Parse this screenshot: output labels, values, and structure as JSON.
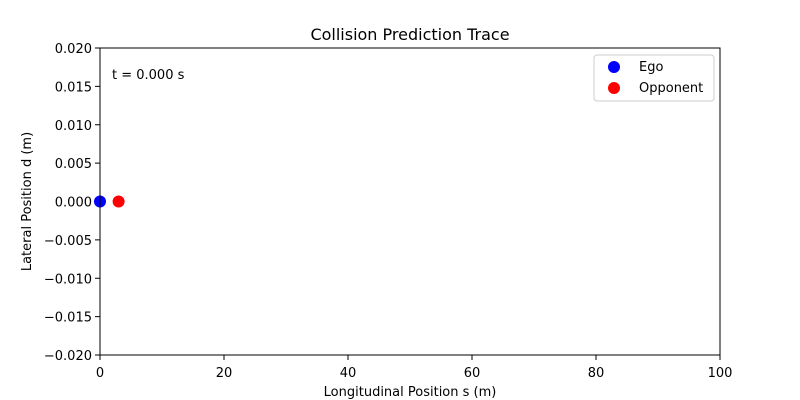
{
  "chart_data": {
    "type": "scatter",
    "title": "Collision Prediction Trace",
    "xlabel": "Longitudinal Position s (m)",
    "ylabel": "Lateral Position d (m)",
    "xlim": [
      0,
      100
    ],
    "ylim": [
      -0.02,
      0.02
    ],
    "x_ticks": [
      0,
      20,
      40,
      60,
      80,
      100
    ],
    "x_tick_labels": [
      "0",
      "20",
      "40",
      "60",
      "80",
      "100"
    ],
    "y_ticks": [
      0.02,
      0.015,
      0.01,
      0.005,
      0.0,
      -0.005,
      -0.01,
      -0.015,
      -0.02
    ],
    "y_tick_labels": [
      "0.020",
      "0.015",
      "0.010",
      "0.005",
      "0.000",
      "−0.005",
      "−0.010",
      "−0.015",
      "−0.020"
    ],
    "grid": false,
    "legend_position": "top-right",
    "annotation": "t = 0.000 s",
    "series": [
      {
        "name": "Ego",
        "color": "#0000ff",
        "points": [
          {
            "x": 0.0,
            "y": 0.0
          }
        ]
      },
      {
        "name": "Opponent",
        "color": "#ff0000",
        "points": [
          {
            "x": 3.0,
            "y": 0.0
          }
        ]
      }
    ]
  }
}
